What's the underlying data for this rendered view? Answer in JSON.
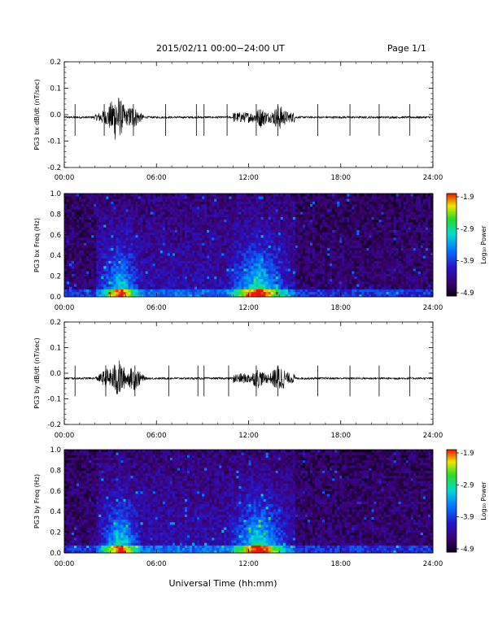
{
  "header": {
    "title": "2015/02/11  00:00−24:00 UT",
    "page": "Page 1/1"
  },
  "xaxis": {
    "label": "Universal Time (hh:mm)",
    "tick_labels": [
      "00:00",
      "06:00",
      "12:00",
      "18:00",
      "24:00"
    ]
  },
  "colorbar": {
    "label": "Log₁₀ Power",
    "tick_labels": [
      "-1.9",
      "-2.9",
      "-3.9",
      "-4.9"
    ]
  },
  "chart_data": [
    {
      "type": "line",
      "ylabel": "PG3 bx dB/dt (nT/sec)",
      "xlim": [
        0,
        24
      ],
      "ylim": [
        -0.2,
        0.2
      ],
      "ytick_labels": [
        "0.2",
        "0.1",
        "0.0",
        "-0.1",
        "-0.2"
      ],
      "baseline": -0.01,
      "bursts": [
        {
          "center": 2.6,
          "amplitude": 0.03
        },
        {
          "center": 3.4,
          "amplitude": 0.1
        },
        {
          "center": 4.4,
          "amplitude": 0.05
        },
        {
          "center": 12.8,
          "amplitude": 0.04
        },
        {
          "center": 14.0,
          "amplitude": 0.05
        }
      ],
      "spikes_hours": [
        0.7,
        2.6,
        4.5,
        6.6,
        8.6,
        9.1,
        10.6,
        12.5,
        13.9,
        16.5,
        18.6,
        20.5,
        22.5
      ]
    },
    {
      "type": "heatmap",
      "ylabel": "PG3 bx Freq (Hz)",
      "xlim": [
        0,
        24
      ],
      "ylim": [
        0,
        1.0
      ],
      "ytick_labels": [
        "1.0",
        "0.8",
        "0.6",
        "0.4",
        "0.2",
        "0.0"
      ],
      "zlim": [
        -4.9,
        -1.9
      ],
      "colorbar_label": "Log₁₀ Power",
      "active_intervals": [
        {
          "start": 2.5,
          "end": 4.8,
          "level": -3.4
        },
        {
          "start": 11.0,
          "end": 14.3,
          "level": -3.2
        }
      ]
    },
    {
      "type": "line",
      "ylabel": "PG3 by dB/dt (nT/sec)",
      "xlim": [
        0,
        24
      ],
      "ylim": [
        -0.2,
        0.2
      ],
      "ytick_labels": [
        "0.2",
        "0.1",
        "0.0",
        "-0.1",
        "-0.2"
      ],
      "baseline": -0.02,
      "bursts": [
        {
          "center": 2.8,
          "amplitude": 0.04
        },
        {
          "center": 3.5,
          "amplitude": 0.08
        },
        {
          "center": 4.5,
          "amplitude": 0.05
        },
        {
          "center": 12.6,
          "amplitude": 0.04
        },
        {
          "center": 14.0,
          "amplitude": 0.06
        }
      ],
      "spikes_hours": [
        0.7,
        2.7,
        4.6,
        6.8,
        8.7,
        9.1,
        10.7,
        12.5,
        13.9,
        16.5,
        18.6,
        20.5,
        22.5
      ]
    },
    {
      "type": "heatmap",
      "ylabel": "PG3 by Freq (Hz)",
      "xlim": [
        0,
        24
      ],
      "ylim": [
        0,
        1.0
      ],
      "ytick_labels": [
        "1.0",
        "0.8",
        "0.6",
        "0.4",
        "0.2",
        "0.0"
      ],
      "zlim": [
        -4.9,
        -1.9
      ],
      "colorbar_label": "Log₁₀ Power",
      "active_intervals": [
        {
          "start": 2.5,
          "end": 4.8,
          "level": -3.3
        },
        {
          "start": 11.0,
          "end": 14.3,
          "level": -3.2
        }
      ]
    }
  ]
}
